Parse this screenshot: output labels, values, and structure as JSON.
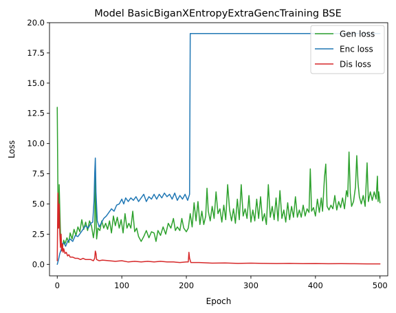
{
  "chart_data": {
    "type": "line",
    "title": "Model BasicBiganXEntropyExtraGencTraining BSE",
    "xlabel": "Epoch",
    "ylabel": "Loss",
    "xlim": [
      -12,
      512
    ],
    "ylim": [
      -0.95,
      20.0
    ],
    "xticks": [
      0,
      100,
      200,
      300,
      400,
      500
    ],
    "yticks": [
      0.0,
      2.5,
      5.0,
      7.5,
      10.0,
      12.5,
      15.0,
      17.5,
      20.0
    ],
    "grid": false,
    "legend_position": "top-right",
    "series": [
      {
        "name": "Gen loss",
        "color": "#2ca02c",
        "points": [
          [
            0,
            13.0
          ],
          [
            1,
            6.2
          ],
          [
            2,
            3.0
          ],
          [
            3,
            6.6
          ],
          [
            4,
            4.5
          ],
          [
            5,
            2.6
          ],
          [
            6,
            1.6
          ],
          [
            8,
            1.4
          ],
          [
            10,
            2.0
          ],
          [
            12,
            1.7
          ],
          [
            15,
            2.2
          ],
          [
            18,
            1.8
          ],
          [
            20,
            2.6
          ],
          [
            23,
            2.1
          ],
          [
            26,
            2.9
          ],
          [
            29,
            2.4
          ],
          [
            32,
            3.1
          ],
          [
            35,
            2.7
          ],
          [
            38,
            3.7
          ],
          [
            41,
            2.9
          ],
          [
            44,
            3.5
          ],
          [
            47,
            2.8
          ],
          [
            50,
            3.6
          ],
          [
            53,
            3.2
          ],
          [
            56,
            2.2
          ],
          [
            58,
            3.0
          ],
          [
            59,
            7.4
          ],
          [
            60,
            4.6
          ],
          [
            61,
            2.1
          ],
          [
            63,
            3.0
          ],
          [
            66,
            2.8
          ],
          [
            69,
            3.6
          ],
          [
            72,
            3.0
          ],
          [
            75,
            3.4
          ],
          [
            78,
            2.9
          ],
          [
            81,
            3.6
          ],
          [
            84,
            2.6
          ],
          [
            87,
            4.0
          ],
          [
            90,
            3.2
          ],
          [
            93,
            3.9
          ],
          [
            96,
            3.0
          ],
          [
            99,
            3.7
          ],
          [
            102,
            2.6
          ],
          [
            105,
            4.2
          ],
          [
            108,
            3.0
          ],
          [
            111,
            3.4
          ],
          [
            114,
            3.0
          ],
          [
            117,
            4.4
          ],
          [
            120,
            2.7
          ],
          [
            123,
            3.0
          ],
          [
            126,
            2.3
          ],
          [
            130,
            1.9
          ],
          [
            134,
            2.3
          ],
          [
            138,
            2.8
          ],
          [
            142,
            2.2
          ],
          [
            146,
            2.7
          ],
          [
            150,
            2.6
          ],
          [
            153,
            1.9
          ],
          [
            156,
            2.8
          ],
          [
            160,
            2.4
          ],
          [
            164,
            3.1
          ],
          [
            168,
            2.5
          ],
          [
            172,
            3.4
          ],
          [
            176,
            3.0
          ],
          [
            180,
            3.8
          ],
          [
            183,
            2.8
          ],
          [
            186,
            3.1
          ],
          [
            190,
            2.8
          ],
          [
            193,
            3.8
          ],
          [
            196,
            3.0
          ],
          [
            200,
            2.7
          ],
          [
            203,
            3.0
          ],
          [
            206,
            4.2
          ],
          [
            209,
            3.1
          ],
          [
            212,
            5.1
          ],
          [
            215,
            3.6
          ],
          [
            218,
            5.2
          ],
          [
            221,
            3.3
          ],
          [
            224,
            4.4
          ],
          [
            227,
            3.3
          ],
          [
            230,
            4.0
          ],
          [
            232,
            6.3
          ],
          [
            234,
            4.4
          ],
          [
            237,
            3.6
          ],
          [
            240,
            4.8
          ],
          [
            243,
            3.8
          ],
          [
            246,
            6.0
          ],
          [
            249,
            4.2
          ],
          [
            252,
            4.6
          ],
          [
            255,
            3.5
          ],
          [
            258,
            4.9
          ],
          [
            261,
            3.7
          ],
          [
            264,
            6.6
          ],
          [
            267,
            4.5
          ],
          [
            270,
            3.6
          ],
          [
            273,
            4.6
          ],
          [
            276,
            3.4
          ],
          [
            279,
            5.4
          ],
          [
            282,
            3.7
          ],
          [
            285,
            6.6
          ],
          [
            288,
            4.0
          ],
          [
            291,
            4.6
          ],
          [
            294,
            3.8
          ],
          [
            297,
            5.7
          ],
          [
            300,
            3.5
          ],
          [
            303,
            4.5
          ],
          [
            306,
            3.6
          ],
          [
            309,
            5.4
          ],
          [
            312,
            3.8
          ],
          [
            315,
            5.6
          ],
          [
            318,
            3.6
          ],
          [
            321,
            4.2
          ],
          [
            324,
            3.3
          ],
          [
            327,
            6.6
          ],
          [
            330,
            3.9
          ],
          [
            333,
            4.8
          ],
          [
            336,
            3.7
          ],
          [
            339,
            5.5
          ],
          [
            342,
            3.6
          ],
          [
            345,
            6.1
          ],
          [
            348,
            3.8
          ],
          [
            351,
            4.5
          ],
          [
            354,
            3.5
          ],
          [
            357,
            5.1
          ],
          [
            360,
            3.7
          ],
          [
            363,
            4.8
          ],
          [
            366,
            3.9
          ],
          [
            369,
            5.6
          ],
          [
            372,
            3.9
          ],
          [
            375,
            4.5
          ],
          [
            378,
            3.9
          ],
          [
            381,
            4.9
          ],
          [
            384,
            4.0
          ],
          [
            387,
            4.6
          ],
          [
            390,
            4.3
          ],
          [
            392,
            7.9
          ],
          [
            394,
            4.4
          ],
          [
            397,
            4.7
          ],
          [
            400,
            4.0
          ],
          [
            403,
            5.4
          ],
          [
            406,
            4.3
          ],
          [
            409,
            5.5
          ],
          [
            411,
            4.4
          ],
          [
            414,
            7.2
          ],
          [
            416,
            8.3
          ],
          [
            418,
            4.8
          ],
          [
            421,
            4.5
          ],
          [
            424,
            4.9
          ],
          [
            427,
            4.6
          ],
          [
            430,
            5.7
          ],
          [
            433,
            4.5
          ],
          [
            436,
            5.2
          ],
          [
            439,
            4.7
          ],
          [
            442,
            5.5
          ],
          [
            445,
            4.6
          ],
          [
            448,
            6.1
          ],
          [
            450,
            5.6
          ],
          [
            452,
            9.3
          ],
          [
            454,
            5.9
          ],
          [
            456,
            4.8
          ],
          [
            459,
            5.2
          ],
          [
            462,
            6.4
          ],
          [
            464,
            9.0
          ],
          [
            466,
            6.7
          ],
          [
            468,
            5.6
          ],
          [
            471,
            5.0
          ],
          [
            474,
            5.7
          ],
          [
            477,
            4.8
          ],
          [
            480,
            8.4
          ],
          [
            482,
            5.2
          ],
          [
            485,
            6.0
          ],
          [
            488,
            5.3
          ],
          [
            491,
            6.0
          ],
          [
            494,
            5.4
          ],
          [
            496,
            7.3
          ],
          [
            497,
            5.2
          ],
          [
            498,
            6.0
          ],
          [
            500,
            5.1
          ]
        ]
      },
      {
        "name": "Enc loss",
        "color": "#1f77b4",
        "points": [
          [
            0,
            0.0
          ],
          [
            2,
            0.4
          ],
          [
            4,
            0.9
          ],
          [
            6,
            1.2
          ],
          [
            8,
            1.7
          ],
          [
            10,
            1.8
          ],
          [
            13,
            1.5
          ],
          [
            16,
            1.9
          ],
          [
            20,
            2.1
          ],
          [
            24,
            1.9
          ],
          [
            28,
            2.4
          ],
          [
            32,
            2.3
          ],
          [
            36,
            2.6
          ],
          [
            40,
            2.9
          ],
          [
            44,
            3.2
          ],
          [
            48,
            3.0
          ],
          [
            52,
            3.4
          ],
          [
            55,
            3.5
          ],
          [
            57,
            5.3
          ],
          [
            58,
            7.5
          ],
          [
            59,
            8.8
          ],
          [
            60,
            6.0
          ],
          [
            62,
            3.6
          ],
          [
            65,
            3.1
          ],
          [
            68,
            3.4
          ],
          [
            72,
            3.8
          ],
          [
            76,
            4.0
          ],
          [
            80,
            4.3
          ],
          [
            84,
            4.6
          ],
          [
            88,
            4.4
          ],
          [
            92,
            4.9
          ],
          [
            96,
            5.0
          ],
          [
            100,
            5.4
          ],
          [
            103,
            5.0
          ],
          [
            106,
            5.5
          ],
          [
            110,
            5.2
          ],
          [
            114,
            5.5
          ],
          [
            118,
            5.3
          ],
          [
            122,
            5.6
          ],
          [
            126,
            5.2
          ],
          [
            130,
            5.5
          ],
          [
            134,
            5.8
          ],
          [
            138,
            5.2
          ],
          [
            142,
            5.6
          ],
          [
            146,
            5.4
          ],
          [
            150,
            5.8
          ],
          [
            154,
            5.4
          ],
          [
            158,
            5.8
          ],
          [
            162,
            5.5
          ],
          [
            166,
            5.9
          ],
          [
            170,
            5.6
          ],
          [
            174,
            5.8
          ],
          [
            178,
            5.4
          ],
          [
            182,
            5.9
          ],
          [
            186,
            5.3
          ],
          [
            190,
            5.7
          ],
          [
            194,
            5.4
          ],
          [
            198,
            5.8
          ],
          [
            202,
            5.3
          ],
          [
            205,
            5.8
          ],
          [
            206,
            19.1
          ],
          [
            500,
            19.1
          ]
        ]
      },
      {
        "name": "Dis loss",
        "color": "#d62728",
        "points": [
          [
            0,
            0.3
          ],
          [
            1,
            5.9
          ],
          [
            2,
            3.0
          ],
          [
            3,
            5.0
          ],
          [
            4,
            2.5
          ],
          [
            5,
            1.4
          ],
          [
            6,
            2.5
          ],
          [
            7,
            1.1
          ],
          [
            8,
            1.7
          ],
          [
            9,
            1.0
          ],
          [
            10,
            1.3
          ],
          [
            12,
            0.9
          ],
          [
            14,
            1.0
          ],
          [
            16,
            0.7
          ],
          [
            18,
            0.8
          ],
          [
            20,
            0.6
          ],
          [
            24,
            0.6
          ],
          [
            28,
            0.5
          ],
          [
            32,
            0.5
          ],
          [
            36,
            0.4
          ],
          [
            40,
            0.5
          ],
          [
            44,
            0.4
          ],
          [
            48,
            0.4
          ],
          [
            52,
            0.4
          ],
          [
            56,
            0.3
          ],
          [
            58,
            0.5
          ],
          [
            59,
            1.1
          ],
          [
            60,
            0.9
          ],
          [
            61,
            0.4
          ],
          [
            65,
            0.3
          ],
          [
            70,
            0.35
          ],
          [
            80,
            0.3
          ],
          [
            90,
            0.25
          ],
          [
            100,
            0.3
          ],
          [
            110,
            0.2
          ],
          [
            120,
            0.25
          ],
          [
            130,
            0.2
          ],
          [
            140,
            0.25
          ],
          [
            150,
            0.2
          ],
          [
            160,
            0.25
          ],
          [
            170,
            0.2
          ],
          [
            180,
            0.2
          ],
          [
            190,
            0.15
          ],
          [
            200,
            0.2
          ],
          [
            203,
            0.2
          ],
          [
            204,
            1.0
          ],
          [
            205,
            0.5
          ],
          [
            207,
            0.15
          ],
          [
            220,
            0.15
          ],
          [
            240,
            0.1
          ],
          [
            260,
            0.12
          ],
          [
            280,
            0.08
          ],
          [
            300,
            0.1
          ],
          [
            320,
            0.08
          ],
          [
            340,
            0.07
          ],
          [
            360,
            0.08
          ],
          [
            380,
            0.06
          ],
          [
            400,
            0.07
          ],
          [
            420,
            0.05
          ],
          [
            440,
            0.06
          ],
          [
            460,
            0.05
          ],
          [
            480,
            0.04
          ],
          [
            500,
            0.04
          ]
        ]
      }
    ]
  }
}
